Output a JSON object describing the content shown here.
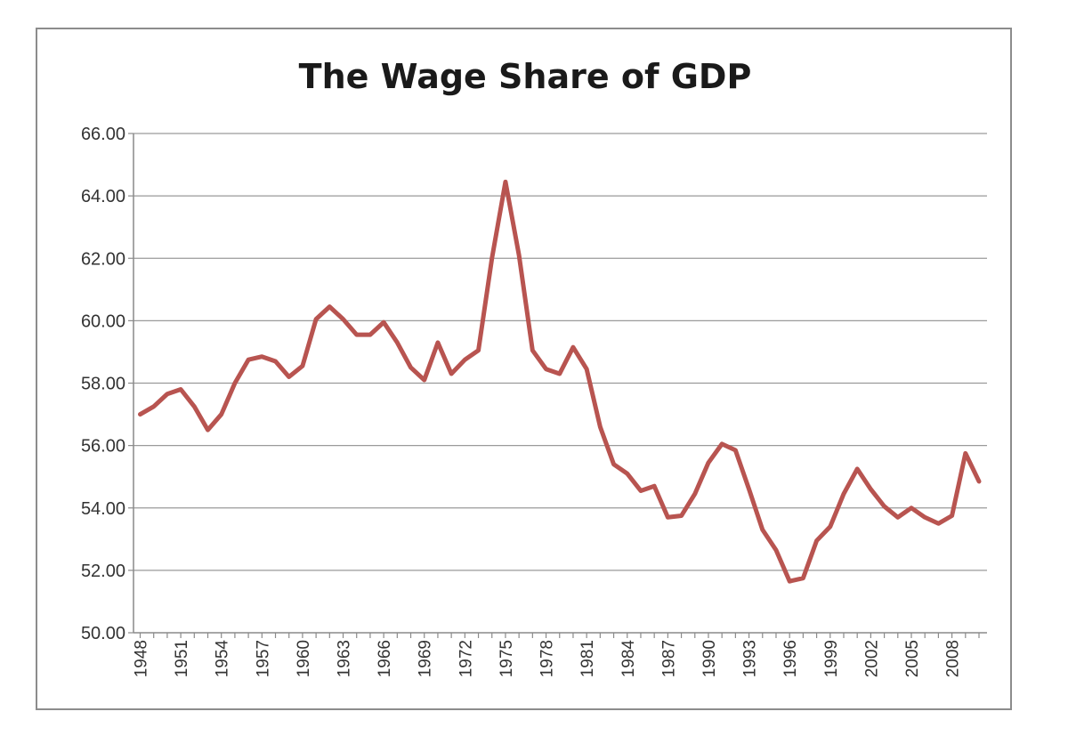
{
  "chart_data": {
    "type": "line",
    "title": "The Wage Share of GDP",
    "xlabel": "",
    "ylabel": "",
    "ylim": [
      50,
      66
    ],
    "y_ticks": [
      "50.00",
      "52.00",
      "54.00",
      "56.00",
      "58.00",
      "60.00",
      "62.00",
      "64.00",
      "66.00"
    ],
    "x_tick_labels": [
      "1948",
      "1951",
      "1954",
      "1957",
      "1960",
      "1963",
      "1966",
      "1969",
      "1972",
      "1975",
      "1978",
      "1981",
      "1984",
      "1987",
      "1990",
      "1993",
      "1996",
      "1999",
      "2002",
      "2005",
      "2008"
    ],
    "grid": true,
    "legend": "none",
    "colors": {
      "series": "#b85450",
      "grid": "#9a9a9a",
      "frame": "#8c8c8c"
    },
    "series": [
      {
        "name": "Wage Share of GDP",
        "x": [
          1948,
          1949,
          1950,
          1951,
          1952,
          1953,
          1954,
          1955,
          1956,
          1957,
          1958,
          1959,
          1960,
          1961,
          1962,
          1963,
          1964,
          1965,
          1966,
          1967,
          1968,
          1969,
          1970,
          1971,
          1972,
          1973,
          1974,
          1975,
          1976,
          1977,
          1978,
          1979,
          1980,
          1981,
          1982,
          1983,
          1984,
          1985,
          1986,
          1987,
          1988,
          1989,
          1990,
          1991,
          1992,
          1993,
          1994,
          1995,
          1996,
          1997,
          1998,
          1999,
          2000,
          2001,
          2002,
          2003,
          2004,
          2005,
          2006,
          2007,
          2008,
          2009,
          2010
        ],
        "values": [
          57.0,
          57.25,
          57.65,
          57.8,
          57.25,
          56.5,
          57.0,
          58.0,
          58.75,
          58.85,
          58.7,
          58.2,
          58.55,
          60.05,
          60.45,
          60.05,
          59.55,
          59.55,
          59.95,
          59.3,
          58.5,
          58.1,
          59.3,
          58.3,
          58.75,
          59.05,
          62.0,
          64.45,
          62.1,
          59.05,
          58.45,
          58.3,
          59.15,
          58.45,
          56.6,
          55.4,
          55.1,
          54.55,
          54.7,
          53.7,
          53.75,
          54.45,
          55.45,
          56.05,
          55.85,
          54.6,
          53.3,
          52.65,
          51.65,
          51.75,
          52.95,
          53.4,
          54.45,
          55.25,
          54.6,
          54.05,
          53.7,
          54.0,
          53.7,
          53.5,
          53.75,
          55.75,
          54.85
        ]
      }
    ]
  }
}
